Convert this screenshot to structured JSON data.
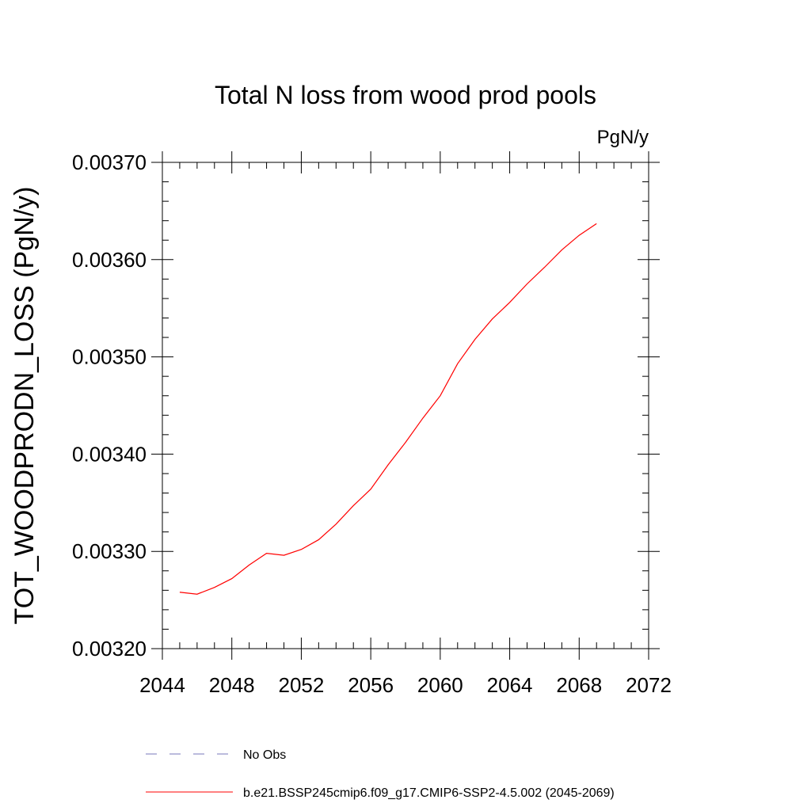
{
  "chart_data": {
    "type": "line",
    "title": "Total N loss from wood prod pools",
    "units_label": "PgN/y",
    "ylabel": "TOT_WOODPRODN_LOSS  (PgN/y)",
    "xlabel": "",
    "xlim": [
      2044,
      2072
    ],
    "ylim": [
      0.0032,
      0.0037
    ],
    "x_ticks": [
      2044,
      2048,
      2052,
      2056,
      2060,
      2064,
      2068,
      2072
    ],
    "x_tick_labels": [
      "2044",
      "2048",
      "2052",
      "2056",
      "2060",
      "2064",
      "2068",
      "2072"
    ],
    "y_ticks": [
      0.0032,
      0.0033,
      0.0034,
      0.0035,
      0.0036,
      0.0037
    ],
    "y_tick_labels": [
      "0.00320",
      "0.00330",
      "0.00340",
      "0.00350",
      "0.00360",
      "0.00370"
    ],
    "x_minor_step": 1,
    "y_minor_step": 2e-05,
    "grid": false,
    "legend_position": "bottom",
    "series": [
      {
        "name": "b.e21.BSSP245cmip6.f09_g17.CMIP6-SSP2-4.5.002 (2045-2069)",
        "color": "#ff0000",
        "dash": "solid",
        "x": [
          2045,
          2046,
          2047,
          2048,
          2049,
          2050,
          2051,
          2052,
          2053,
          2054,
          2055,
          2056,
          2057,
          2058,
          2059,
          2060,
          2061,
          2062,
          2063,
          2064,
          2065,
          2066,
          2067,
          2068,
          2069
        ],
        "values": [
          0.003258,
          0.003256,
          0.003263,
          0.003272,
          0.003286,
          0.003298,
          0.003296,
          0.003302,
          0.003312,
          0.003328,
          0.003347,
          0.003364,
          0.003389,
          0.003412,
          0.003437,
          0.00346,
          0.003493,
          0.003518,
          0.003539,
          0.003556,
          0.003575,
          0.003592,
          0.00361,
          0.003625,
          0.003637
        ]
      }
    ],
    "legend": [
      {
        "label": "No Obs",
        "color": "#7777bb",
        "dash": "dashed"
      },
      {
        "label": "b.e21.BSSP245cmip6.f09_g17.CMIP6-SSP2-4.5.002 (2045-2069)",
        "color": "#ff0000",
        "dash": "solid"
      }
    ]
  }
}
